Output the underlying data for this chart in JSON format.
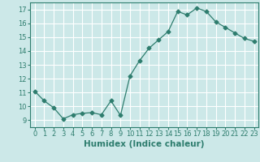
{
  "x": [
    0,
    1,
    2,
    3,
    4,
    5,
    6,
    7,
    8,
    9,
    10,
    11,
    12,
    13,
    14,
    15,
    16,
    17,
    18,
    19,
    20,
    21,
    22,
    23
  ],
  "y": [
    11.1,
    10.4,
    9.9,
    9.1,
    9.4,
    9.5,
    9.55,
    9.4,
    10.4,
    9.35,
    12.2,
    13.3,
    14.2,
    14.8,
    15.4,
    16.85,
    16.6,
    17.1,
    16.85,
    16.1,
    15.7,
    15.3,
    14.9,
    14.7
  ],
  "line_color": "#2e7d6e",
  "marker": "D",
  "marker_size": 2.5,
  "bg_color": "#cce8e8",
  "grid_color": "#ffffff",
  "xlabel": "Humidex (Indice chaleur)",
  "ylim": [
    8.5,
    17.5
  ],
  "xlim": [
    -0.5,
    23.5
  ],
  "yticks": [
    9,
    10,
    11,
    12,
    13,
    14,
    15,
    16,
    17
  ],
  "xticks": [
    0,
    1,
    2,
    3,
    4,
    5,
    6,
    7,
    8,
    9,
    10,
    11,
    12,
    13,
    14,
    15,
    16,
    17,
    18,
    19,
    20,
    21,
    22,
    23
  ],
  "tick_fontsize": 6,
  "xlabel_fontsize": 7.5
}
